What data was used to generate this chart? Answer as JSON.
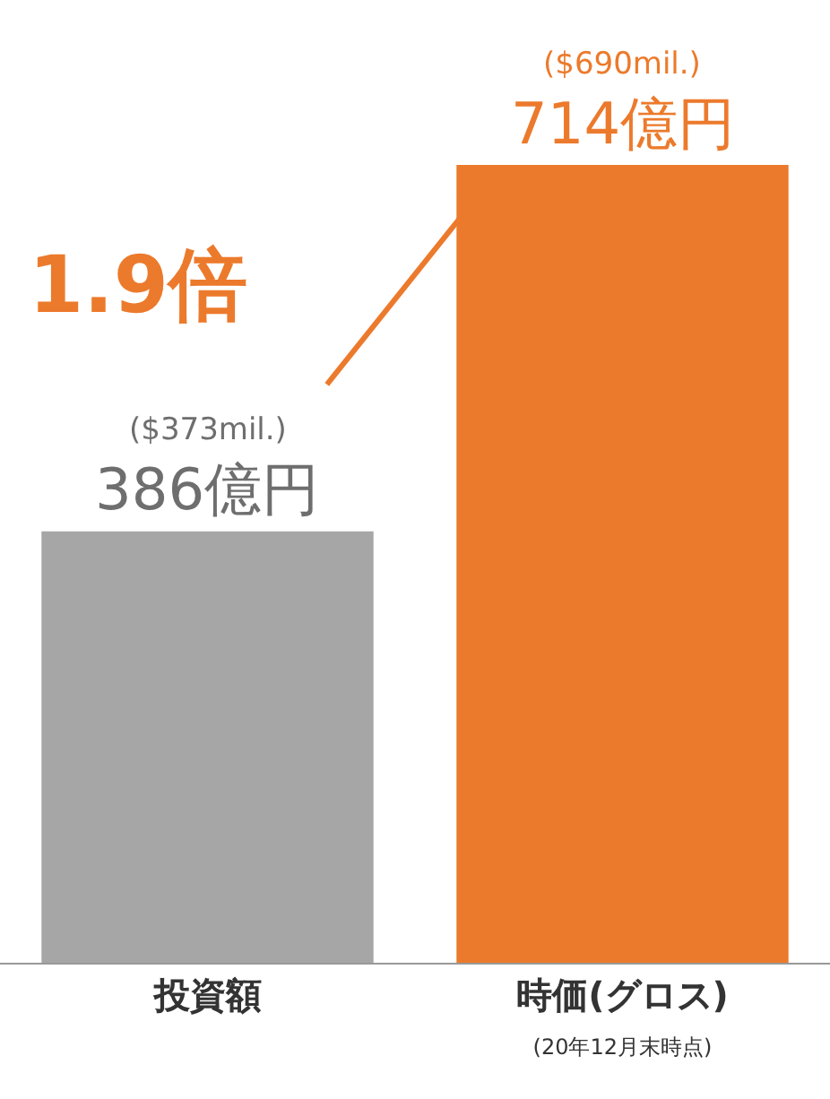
{
  "chart_data": {
    "type": "bar",
    "categories": [
      "投資額",
      "時価(グロス)\n(20年12月末時点)"
    ],
    "values": [
      386,
      714
    ],
    "colors": [
      "#a6a6a6",
      "#ec7a2c"
    ],
    "value_labels": [
      "($373mil.)\n386億円",
      "($690mil.)\n714億円"
    ],
    "annotations": [
      "1.9倍"
    ],
    "legend": false,
    "tick_labels": "x"
  }
}
